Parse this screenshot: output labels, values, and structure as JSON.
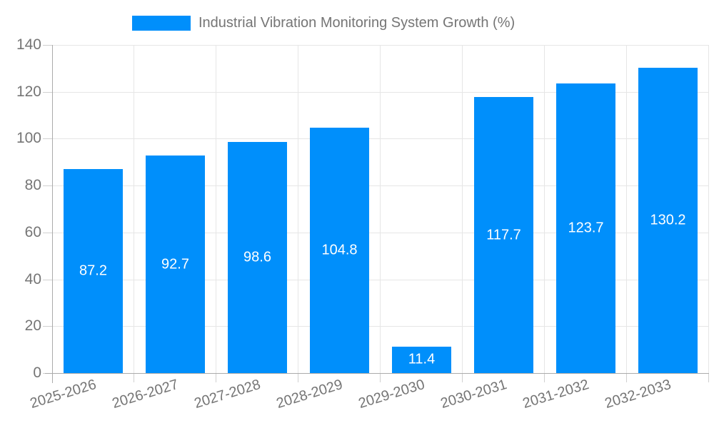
{
  "legend": {
    "label": "Industrial Vibration Monitoring System Growth (%)"
  },
  "chart_data": {
    "type": "bar",
    "title": "Industrial Vibration Monitoring System Growth (%)",
    "categories": [
      "2025-2026",
      "2026-2027",
      "2027-2028",
      "2028-2029",
      "2029-2030",
      "2030-2031",
      "2031-2032",
      "2032-2033"
    ],
    "values": [
      87.2,
      92.7,
      98.6,
      104.8,
      11.4,
      117.7,
      123.7,
      130.2
    ],
    "value_labels": [
      "87.2",
      "92.7",
      "98.6",
      "104.8",
      "11.4",
      "117.7",
      "123.7",
      "130.2"
    ],
    "xlabel": "",
    "ylabel": "",
    "ylim": [
      0,
      140
    ],
    "yticks": [
      0,
      20,
      40,
      60,
      80,
      100,
      120,
      140
    ],
    "grid": "on",
    "legend_position": "top-center",
    "x_label_rotation_deg": -17,
    "colors": {
      "bar": "#008FFB",
      "value_label": "#FFFFFF",
      "axis_text": "#757575",
      "grid_line": "#E6E6E6",
      "axis_line": "#ABABAB",
      "tick": "#D0D0D0",
      "background": "#FFFFFF"
    }
  }
}
